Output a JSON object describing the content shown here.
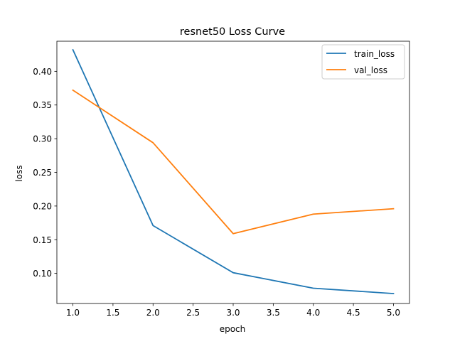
{
  "chart_data": {
    "type": "line",
    "title": "resnet50 Loss Curve",
    "xlabel": "epoch",
    "ylabel": "loss",
    "x": [
      1.0,
      2.0,
      3.0,
      4.0,
      5.0
    ],
    "xlim": [
      0.8,
      5.2
    ],
    "ylim": [
      0.0553,
      0.4447
    ],
    "xticks": [
      "1.0",
      "1.5",
      "2.0",
      "2.5",
      "3.0",
      "3.5",
      "4.0",
      "4.5",
      "5.0"
    ],
    "yticks": [
      "0.10",
      "0.15",
      "0.20",
      "0.25",
      "0.30",
      "0.35",
      "0.40"
    ],
    "grid": false,
    "legend_position": "top-right",
    "series": [
      {
        "name": "train_loss",
        "color": "#1f77b4",
        "values": [
          0.432,
          0.171,
          0.101,
          0.078,
          0.07
        ]
      },
      {
        "name": "val_loss",
        "color": "#ff7f0e",
        "values": [
          0.372,
          0.294,
          0.159,
          0.188,
          0.196
        ]
      }
    ]
  }
}
